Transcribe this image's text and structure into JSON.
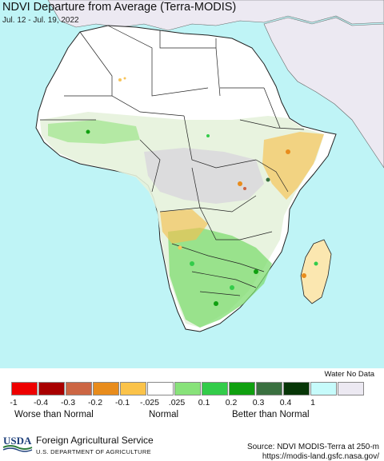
{
  "header": {
    "title": "NDVI Departure from Average (Terra-MODIS)",
    "date_range": "Jul. 12 - Jul. 19, 2022"
  },
  "map": {
    "region": "Africa",
    "ocean_color": "#bff4f6",
    "land_nodata_color": "#ffffff",
    "outside_region_color": "#ece9f2"
  },
  "legend": {
    "water_no_data_label": "Water No Data",
    "bins": [
      {
        "color": "#ee0000"
      },
      {
        "color": "#a80000"
      },
      {
        "color": "#cc6644"
      },
      {
        "color": "#e88c1c"
      },
      {
        "color": "#fbc34a"
      },
      {
        "color": "#ffffff"
      },
      {
        "color": "#88e27a"
      },
      {
        "color": "#33cc4a"
      },
      {
        "color": "#10a010"
      },
      {
        "color": "#3a7040"
      },
      {
        "color": "#073607"
      },
      {
        "color": "#c6fbfb"
      },
      {
        "color": "#ece9f2"
      }
    ],
    "tick_labels": [
      "-1",
      "-0.4",
      "-0.3",
      "-0.2",
      "-0.1",
      "-.025",
      ".025",
      "0.1",
      "0.2",
      "0.3",
      "0.4",
      "1"
    ],
    "captions": {
      "worse": "Worse than Normal",
      "normal": "Normal",
      "better": "Better than Normal"
    }
  },
  "footer": {
    "logo_text": "USDA",
    "agency": "Foreign Agricultural Service",
    "department": "U.S. DEPARTMENT OF AGRICULTURE",
    "source": "Source: NDVI MODIS-Terra at 250-m",
    "url": "https://modis-land.gsfc.nasa.gov/"
  }
}
